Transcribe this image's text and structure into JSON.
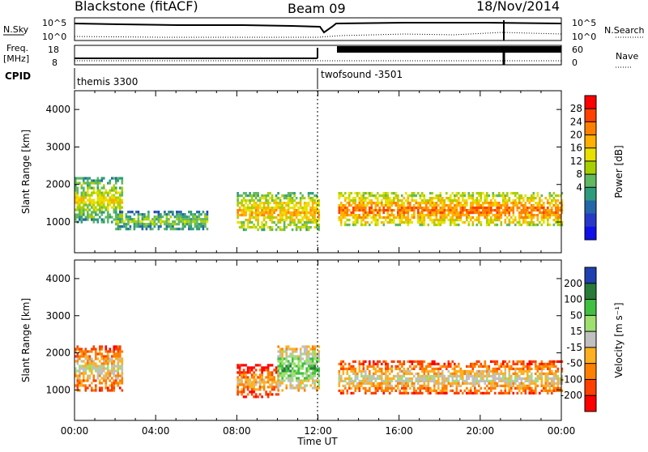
{
  "header": {
    "station": "Blackstone (fitACF)",
    "beam": "Beam 09",
    "date": "18/Nov/2014"
  },
  "top_panel": {
    "left_label_1": "N.Sky",
    "left_ticks_1": [
      "10^5",
      "10^0"
    ],
    "right_ticks_1": [
      "10^5",
      "10^0"
    ],
    "right_label_1": "N.Search",
    "left_label_2a": "Freq.",
    "left_label_2b": "[MHz]",
    "left_ticks_2": [
      "18",
      "8"
    ],
    "right_ticks_2": [
      "60",
      "0"
    ],
    "right_label_2": "Nave",
    "cpid_label": "CPID",
    "cpid_1": "themis 3300",
    "cpid_2": "twofsound -3501"
  },
  "chart_data": [
    {
      "type": "heatmap",
      "ylabel": "Slant Range [km]",
      "xlabel": "Time UT",
      "x_ticks": [
        "00:00",
        "04:00",
        "08:00",
        "12:00",
        "16:00",
        "20:00",
        "00:00"
      ],
      "y_ticks": [
        1000,
        2000,
        3000,
        4000
      ],
      "ylim": [
        180,
        4500
      ],
      "xlim_hours": [
        0,
        24
      ],
      "colorbar": {
        "label": "Power [dB]",
        "ticks": [
          "28",
          "24",
          "20",
          "16",
          "12",
          "8",
          "4"
        ],
        "colors": [
          "#ff0000",
          "#ff4000",
          "#ff8000",
          "#ffb000",
          "#e8e000",
          "#a8d000",
          "#60b860",
          "#2e9c7c",
          "#2466a8",
          "#2838c8",
          "#1010e8"
        ]
      },
      "features": [
        {
          "hour_start": 0.0,
          "hour_end": 2.3,
          "range_start": 1000,
          "range_end": 2200,
          "level_db": 18
        },
        {
          "hour_start": 2.0,
          "hour_end": 6.5,
          "range_start": 800,
          "range_end": 1300,
          "level_db": 16
        },
        {
          "hour_start": 8.0,
          "hour_end": 12.0,
          "range_start": 800,
          "range_end": 1800,
          "level_db": 20
        },
        {
          "hour_start": 13.0,
          "hour_end": 24.0,
          "range_start": 900,
          "range_end": 1800,
          "level_db": 24
        }
      ]
    },
    {
      "type": "heatmap",
      "ylabel": "Slant Range [km]",
      "xlabel": "Time UT",
      "x_ticks": [
        "00:00",
        "04:00",
        "08:00",
        "12:00",
        "16:00",
        "20:00",
        "00:00"
      ],
      "y_ticks": [
        1000,
        2000,
        3000,
        4000
      ],
      "ylim": [
        180,
        4500
      ],
      "xlim_hours": [
        0,
        24
      ],
      "colorbar": {
        "label": "Velocity [m s⁻¹]",
        "ticks": [
          "200",
          "100",
          "50",
          "15",
          "-15",
          "-50",
          "-100",
          "-200"
        ],
        "colors": [
          "#2040b0",
          "#2a7a3a",
          "#40c040",
          "#9ee070",
          "#c0c0c0",
          "#ffb020",
          "#ff8000",
          "#ff4000",
          "#ff0000"
        ]
      },
      "features": [
        {
          "hour_start": 0.0,
          "hour_end": 2.3,
          "range_start": 1000,
          "range_end": 2200,
          "velocity": 0
        },
        {
          "hour_start": 8.0,
          "hour_end": 10.0,
          "range_start": 800,
          "range_end": 1700,
          "velocity": -60
        },
        {
          "hour_start": 10.0,
          "hour_end": 12.0,
          "range_start": 1000,
          "range_end": 2200,
          "velocity": 50
        },
        {
          "hour_start": 13.0,
          "hour_end": 24.0,
          "range_start": 900,
          "range_end": 1800,
          "velocity": 0
        }
      ]
    }
  ]
}
